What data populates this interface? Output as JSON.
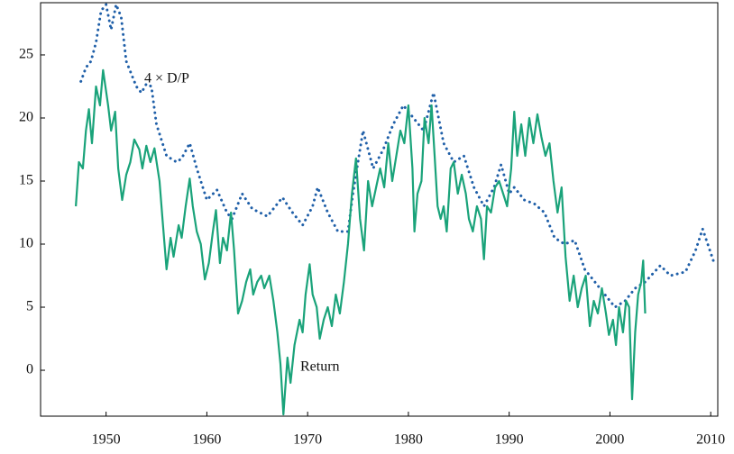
{
  "chart_data": {
    "type": "line",
    "xlim": [
      1943.5,
      2010.7
    ],
    "ylim": [
      -3.64,
      29.14
    ],
    "xticks": [
      1950,
      1960,
      1970,
      1980,
      1990,
      2000,
      2010
    ],
    "yticks": [
      0,
      5,
      10,
      15,
      20,
      25
    ],
    "series": [
      {
        "name": "4 × D/P",
        "color": "#1f5fa8",
        "style": "dotted",
        "x": [
          1947.5,
          1948,
          1948.5,
          1949,
          1949.5,
          1950,
          1950.5,
          1951,
          1951.5,
          1952,
          1953,
          1953.5,
          1954,
          1954.5,
          1955,
          1956,
          1957,
          1957.5,
          1958.3,
          1959,
          1960,
          1961,
          1962,
          1962.5,
          1963.5,
          1964.5,
          1966,
          1967.5,
          1968.5,
          1969.5,
          1970.5,
          1971,
          1972,
          1973,
          1974,
          1974.5,
          1975.5,
          1976.5,
          1977.5,
          1978.5,
          1979.5,
          1980.5,
          1981.5,
          1982.5,
          1983.5,
          1984.5,
          1985.5,
          1986.5,
          1987.5,
          1988.5,
          1989.2,
          1990,
          1990.5,
          1991.5,
          1992.5,
          1993.5,
          1994.5,
          1995.5,
          1996.5,
          1997.5,
          1998.5,
          1999.5,
          2000.5,
          2001.5,
          2002.5,
          2003.5,
          2005,
          2006,
          2007.5,
          2008.5,
          2009.2,
          2010.3
        ],
        "values": [
          22.9,
          24,
          24.5,
          26,
          28.5,
          29,
          27,
          29,
          28,
          24.5,
          22.5,
          22,
          22.7,
          22.5,
          19.5,
          17,
          16.5,
          16.8,
          18,
          16,
          13.5,
          14.3,
          12.5,
          12,
          14,
          12.8,
          12.2,
          13.7,
          12.5,
          11.5,
          13,
          14.5,
          12.5,
          11,
          11,
          14,
          19,
          16,
          17.5,
          19.5,
          21,
          20,
          19,
          22,
          18,
          16.5,
          17,
          14.5,
          13,
          14.5,
          16.3,
          14,
          14.5,
          13.5,
          13.2,
          12.5,
          10.5,
          10,
          10.3,
          8,
          7,
          6,
          5,
          5.5,
          6.5,
          7,
          8.3,
          7.5,
          7.8,
          9.5,
          11.2,
          8.6
        ]
      },
      {
        "name": "Return",
        "color": "#1aa37a",
        "style": "solid",
        "x": [
          1947,
          1947.3,
          1947.7,
          1948,
          1948.3,
          1948.6,
          1949,
          1949.4,
          1949.7,
          1950.2,
          1950.5,
          1950.9,
          1951.2,
          1951.6,
          1952,
          1952.4,
          1952.8,
          1953.3,
          1953.6,
          1954,
          1954.4,
          1954.8,
          1955.3,
          1955.6,
          1956,
          1956.4,
          1956.7,
          1957.2,
          1957.5,
          1957.9,
          1958.3,
          1958.6,
          1959,
          1959.4,
          1959.8,
          1960.2,
          1960.6,
          1960.9,
          1961.3,
          1961.6,
          1962,
          1962.4,
          1962.7,
          1963.1,
          1963.5,
          1963.9,
          1964.3,
          1964.6,
          1965,
          1965.4,
          1965.7,
          1966.2,
          1966.6,
          1967,
          1967.3,
          1967.6,
          1968,
          1968.3,
          1968.7,
          1969.2,
          1969.5,
          1969.8,
          1970.2,
          1970.5,
          1970.9,
          1971.2,
          1971.6,
          1972,
          1972.4,
          1972.8,
          1973.2,
          1973.6,
          1974,
          1974.4,
          1974.8,
          1975.2,
          1975.6,
          1976,
          1976.4,
          1976.8,
          1977.2,
          1977.6,
          1978,
          1978.4,
          1978.8,
          1979.2,
          1979.6,
          1980,
          1980.4,
          1980.6,
          1980.9,
          1981.3,
          1981.6,
          1982,
          1982.3,
          1982.6,
          1982.9,
          1983.2,
          1983.5,
          1983.8,
          1984.2,
          1984.5,
          1984.9,
          1985.3,
          1985.7,
          1986,
          1986.4,
          1986.8,
          1987.2,
          1987.5,
          1987.8,
          1988.2,
          1988.6,
          1989,
          1989.4,
          1989.8,
          1990.2,
          1990.5,
          1990.8,
          1991.2,
          1991.6,
          1992,
          1992.4,
          1992.8,
          1993.2,
          1993.6,
          1994,
          1994.4,
          1994.8,
          1995.2,
          1995.6,
          1996,
          1996.4,
          1996.8,
          1997.2,
          1997.6,
          1998,
          1998.4,
          1998.8,
          1999.2,
          1999.6,
          1999.9,
          2000.3,
          2000.6,
          2000.9,
          2001.3,
          2001.6,
          2001.9,
          2002.2,
          2002.5,
          2002.8,
          2003.1,
          2003.3,
          2003.5
        ],
        "values": [
          13,
          16.5,
          16,
          19,
          20.7,
          18,
          22.5,
          21,
          23.8,
          21,
          19,
          20.5,
          16,
          13.5,
          15.5,
          16.5,
          18.3,
          17.5,
          16,
          17.8,
          16.5,
          17.6,
          15,
          12,
          8,
          10.5,
          9,
          11.5,
          10.5,
          13,
          15.2,
          13,
          11,
          10,
          7.2,
          8.5,
          11,
          12.7,
          8.5,
          10.5,
          9.5,
          12.5,
          9.5,
          4.5,
          5.5,
          7,
          8,
          6,
          7,
          7.5,
          6.5,
          7.5,
          5.5,
          3,
          0.5,
          -3.5,
          1,
          -1,
          2,
          4,
          3,
          6,
          8.4,
          6,
          5,
          2.5,
          4,
          5,
          3.5,
          6,
          4.5,
          7,
          10,
          14,
          16.8,
          12,
          9.5,
          15,
          13,
          14.5,
          16,
          14.5,
          18,
          15,
          17,
          19,
          18,
          21,
          16,
          11,
          14,
          15,
          20,
          18,
          21,
          17,
          13,
          12,
          13,
          11,
          16,
          16.5,
          14,
          15.5,
          14,
          12,
          11,
          13,
          12,
          8.8,
          13,
          12.5,
          14.5,
          15,
          14,
          13,
          16,
          20.5,
          17,
          19.5,
          17,
          20,
          18,
          20.3,
          18.5,
          17,
          18,
          15,
          12.5,
          14.5,
          9,
          5.5,
          7.5,
          5,
          6.5,
          7.5,
          3.5,
          5.5,
          4.5,
          6.5,
          4.5,
          2.8,
          4,
          2,
          5,
          3,
          5.5,
          5,
          -2.3,
          3,
          6,
          7,
          8.7,
          4.5
        ]
      }
    ]
  }
}
